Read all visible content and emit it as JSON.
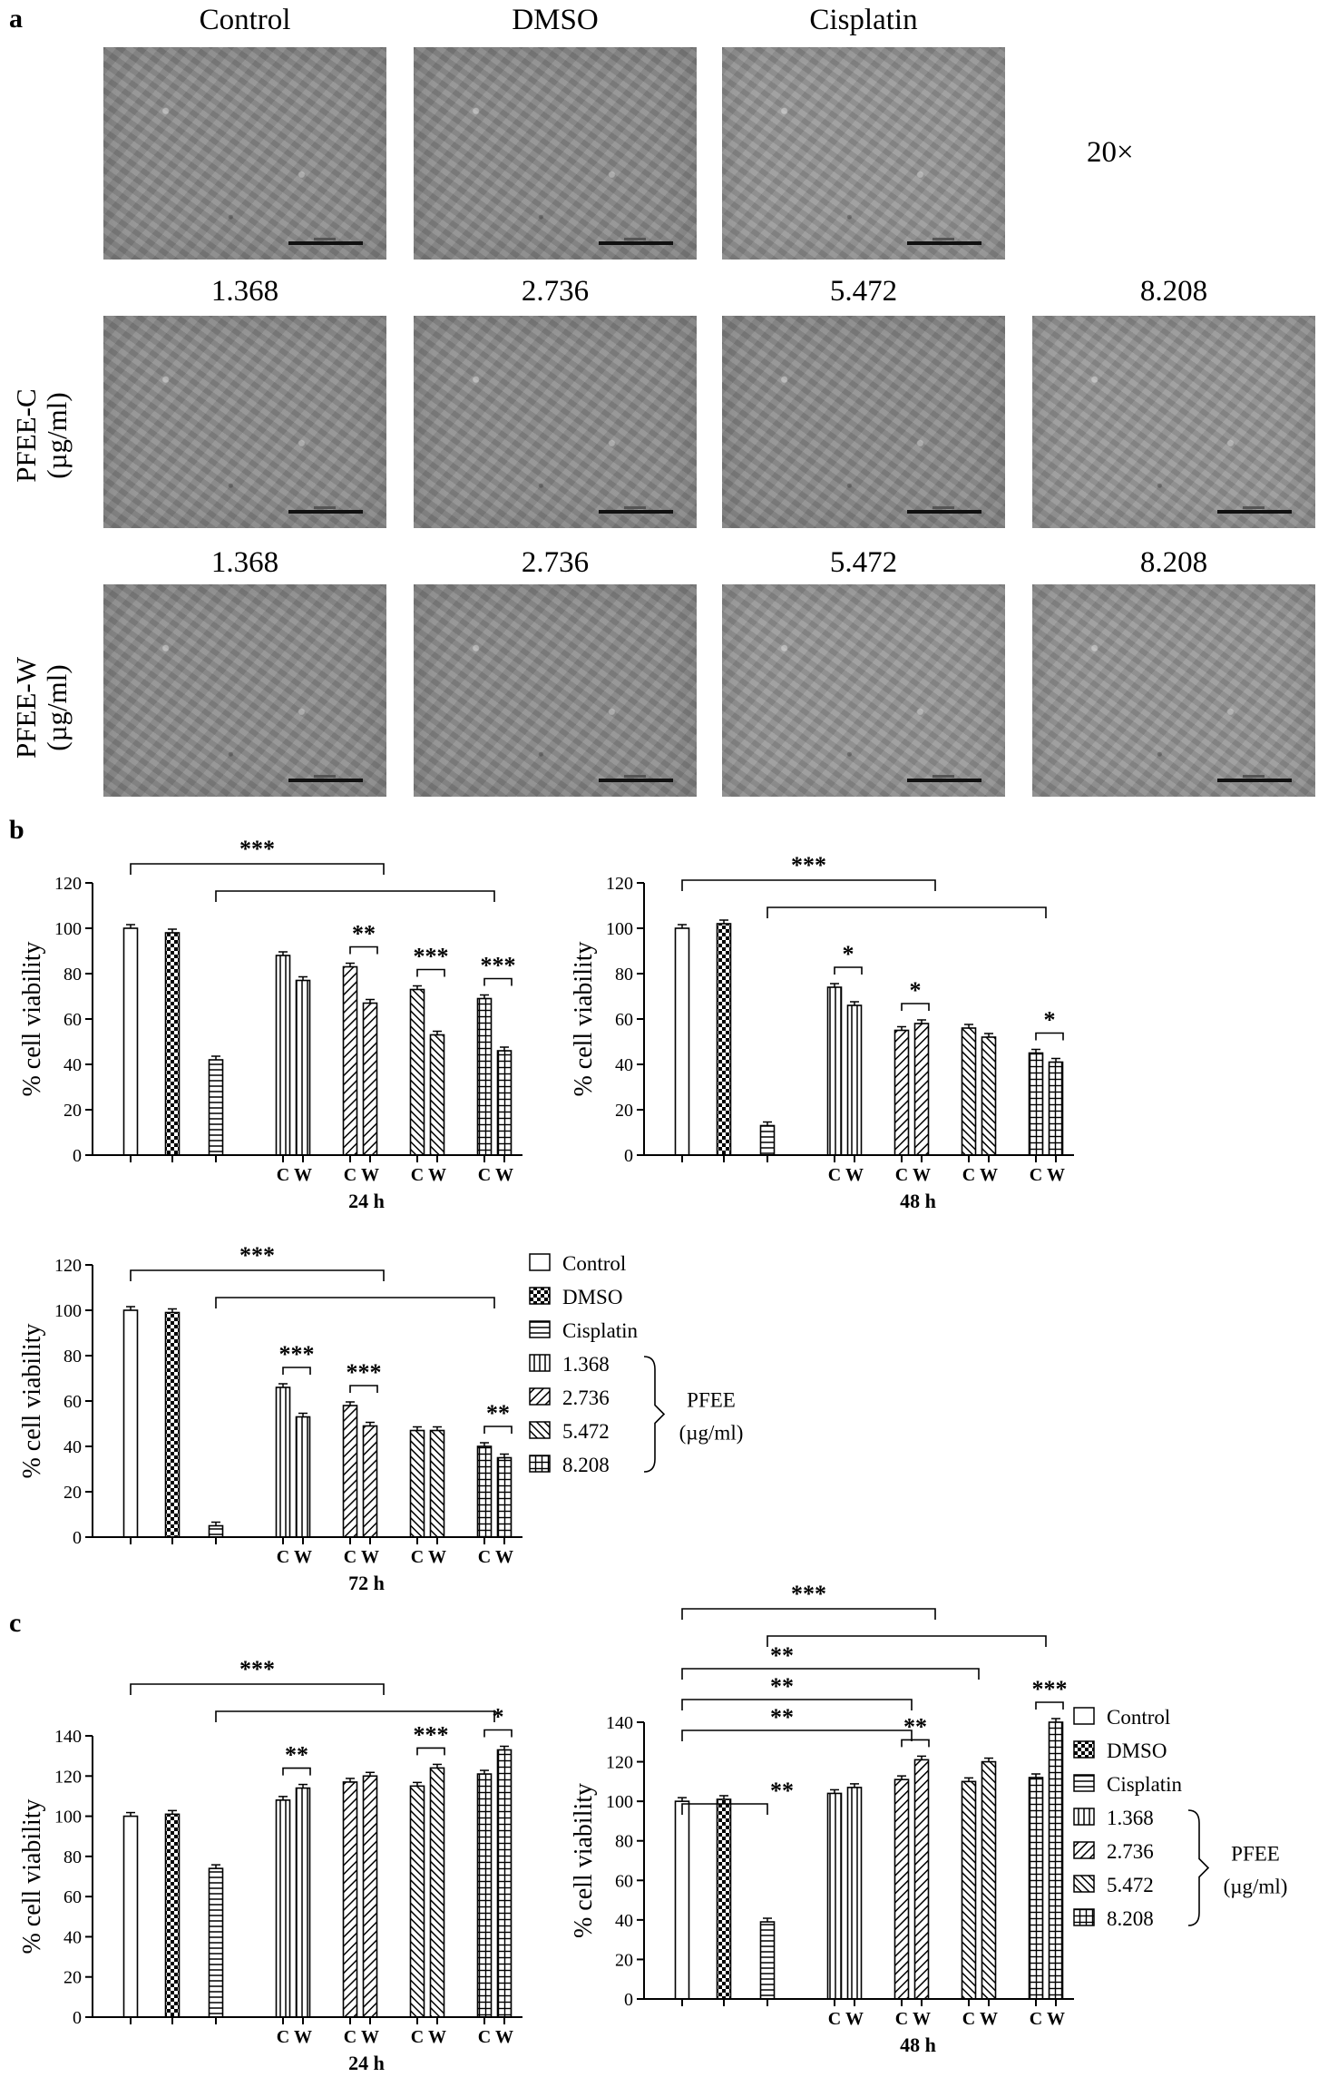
{
  "figure": {
    "panel_a": {
      "letter": "a",
      "top_labels": [
        "Control",
        "DMSO",
        "Cisplatin"
      ],
      "magnification": "20×",
      "conc_labels_c": [
        "1.368",
        "2.736",
        "5.472",
        "8.208"
      ],
      "conc_labels_w": [
        "1.368",
        "2.736",
        "5.472",
        "8.208"
      ],
      "row_label_c": [
        "PFEE-C",
        "(µg/ml)"
      ],
      "row_label_w": [
        "PFEE-W",
        "(µg/ml)"
      ]
    },
    "panel_b": {
      "letter": "b"
    },
    "panel_c": {
      "letter": "c"
    },
    "legend": {
      "items": [
        "Control",
        "DMSO",
        "Cisplatin",
        "1.368",
        "2.736",
        "5.472",
        "8.208"
      ],
      "bracket_label": [
        "PFEE",
        "(µg/ml)"
      ]
    },
    "ylabel": "% cell  viability",
    "pair_labels": [
      "C",
      "W"
    ]
  },
  "chart_data": [
    {
      "id": "b-24h",
      "type": "bar",
      "title": "24  h",
      "ylim": [
        0,
        120
      ],
      "yticks": [
        0,
        20,
        40,
        60,
        80,
        100,
        120
      ],
      "single": [
        {
          "name": "Control",
          "value": 100
        },
        {
          "name": "DMSO",
          "value": 98
        },
        {
          "name": "Cisplatin",
          "value": 42
        }
      ],
      "pairs": [
        {
          "conc": "1.368",
          "C": 88,
          "W": 77,
          "sig": ""
        },
        {
          "conc": "2.736",
          "C": 83,
          "W": 67,
          "sig": "**"
        },
        {
          "conc": "5.472",
          "C": 73,
          "W": 53,
          "sig": "***"
        },
        {
          "conc": "8.208",
          "C": 69,
          "W": 46,
          "sig": "***"
        }
      ],
      "overall_sig": "***"
    },
    {
      "id": "b-48h",
      "type": "bar",
      "title": "48  h",
      "ylim": [
        0,
        120
      ],
      "yticks": [
        0,
        20,
        40,
        60,
        80,
        100,
        120
      ],
      "single": [
        {
          "name": "Control",
          "value": 100
        },
        {
          "name": "DMSO",
          "value": 102
        },
        {
          "name": "Cisplatin",
          "value": 13
        }
      ],
      "pairs": [
        {
          "conc": "1.368",
          "C": 74,
          "W": 66,
          "sig": "*"
        },
        {
          "conc": "2.736",
          "C": 55,
          "W": 58,
          "sig": "*"
        },
        {
          "conc": "5.472",
          "C": 56,
          "W": 52,
          "sig": ""
        },
        {
          "conc": "8.208",
          "C": 45,
          "W": 41,
          "sig": "*"
        }
      ],
      "overall_sig": "***"
    },
    {
      "id": "b-72h",
      "type": "bar",
      "title": "72  h",
      "ylim": [
        0,
        120
      ],
      "yticks": [
        0,
        20,
        40,
        60,
        80,
        100,
        120
      ],
      "single": [
        {
          "name": "Control",
          "value": 100
        },
        {
          "name": "DMSO",
          "value": 99
        },
        {
          "name": "Cisplatin",
          "value": 5
        }
      ],
      "pairs": [
        {
          "conc": "1.368",
          "C": 66,
          "W": 53,
          "sig": "***"
        },
        {
          "conc": "2.736",
          "C": 58,
          "W": 49,
          "sig": "***"
        },
        {
          "conc": "5.472",
          "C": 47,
          "W": 47,
          "sig": ""
        },
        {
          "conc": "8.208",
          "C": 40,
          "W": 35,
          "sig": "**"
        }
      ],
      "overall_sig": "***"
    },
    {
      "id": "c-24h",
      "type": "bar",
      "title": "24  h",
      "ylim": [
        0,
        140
      ],
      "yticks": [
        0,
        20,
        40,
        60,
        80,
        100,
        120,
        140
      ],
      "single": [
        {
          "name": "Control",
          "value": 100
        },
        {
          "name": "DMSO",
          "value": 101
        },
        {
          "name": "Cisplatin",
          "value": 74
        }
      ],
      "pairs": [
        {
          "conc": "1.368",
          "C": 108,
          "W": 114,
          "sig": "**"
        },
        {
          "conc": "2.736",
          "C": 117,
          "W": 120,
          "sig": ""
        },
        {
          "conc": "5.472",
          "C": 115,
          "W": 124,
          "sig": "***"
        },
        {
          "conc": "8.208",
          "C": 121,
          "W": 133,
          "sig": "*"
        }
      ],
      "overall_sig": "***"
    },
    {
      "id": "c-48h",
      "type": "bar",
      "title": "48  h",
      "ylim": [
        0,
        140
      ],
      "yticks": [
        0,
        20,
        40,
        60,
        80,
        100,
        120,
        140
      ],
      "single": [
        {
          "name": "Control",
          "value": 100
        },
        {
          "name": "DMSO",
          "value": 101
        },
        {
          "name": "Cisplatin",
          "value": 39
        }
      ],
      "pairs": [
        {
          "conc": "1.368",
          "C": 104,
          "W": 107,
          "sig": ""
        },
        {
          "conc": "2.736",
          "C": 111,
          "W": 121,
          "sig": "**"
        },
        {
          "conc": "5.472",
          "C": 110,
          "W": 120,
          "sig": ""
        },
        {
          "conc": "8.208",
          "C": 112,
          "W": 140,
          "sig": "***"
        }
      ],
      "overall_sig": "***",
      "extra_brackets": [
        "**",
        "**",
        "**",
        "**"
      ]
    }
  ]
}
